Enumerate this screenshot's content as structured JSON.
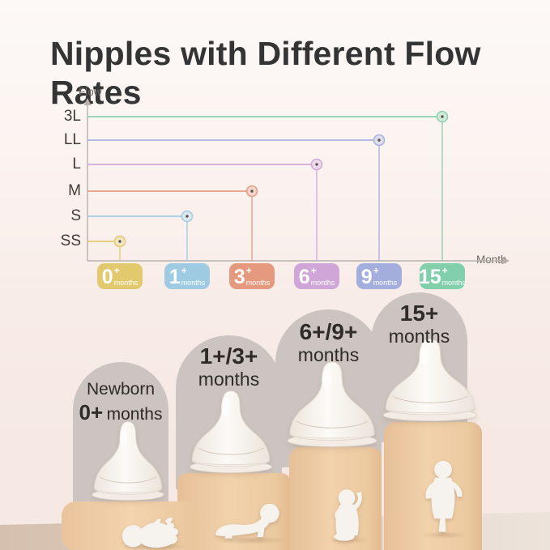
{
  "title": "Nipples with Different Flow Rates",
  "chart_data": {
    "type": "scatter",
    "subtype": "stem-step",
    "title": "Nipples with Different Flow Rates",
    "xlabel": "Month",
    "ylabel": "Flow",
    "x_categories": [
      "0+ months",
      "1+ months",
      "3+ months",
      "6+ months",
      "9+ months",
      "15+ months"
    ],
    "y_categories": [
      "SS",
      "S",
      "M",
      "L",
      "LL",
      "3L"
    ],
    "points": [
      {
        "month": "0+ months",
        "flow": "SS",
        "color": "#e3cb72"
      },
      {
        "month": "1+ months",
        "flow": "S",
        "color": "#a4cce2"
      },
      {
        "month": "3+ months",
        "flow": "M",
        "color": "#e69d86"
      },
      {
        "month": "6+ months",
        "flow": "L",
        "color": "#d2abdb"
      },
      {
        "month": "9+ months",
        "flow": "LL",
        "color": "#a9b2e0"
      },
      {
        "month": "15+ months",
        "flow": "3L",
        "color": "#8ed1b0"
      },
      {
        "note": "each colored line runs from the Flow axis to its month marker, then drops to the Month axis"
      }
    ],
    "grid": false,
    "legend": "none"
  },
  "chart": {
    "flow_axis_label": "Flow",
    "month_axis_label": "Month",
    "flow_levels": [
      "SS",
      "S",
      "M",
      "L",
      "LL",
      "3L"
    ],
    "months": [
      {
        "num": "0",
        "plus": "+",
        "unit": "months",
        "badge": "#e2c96d"
      },
      {
        "num": "1",
        "plus": "+",
        "unit": "months",
        "badge": "#9ecbe2"
      },
      {
        "num": "3",
        "plus": "+",
        "unit": "months",
        "badge": "#e5997f"
      },
      {
        "num": "6",
        "plus": "+",
        "unit": "months",
        "badge": "#d0a6d9"
      },
      {
        "num": "9",
        "plus": "+",
        "unit": "months",
        "badge": "#a3aedd"
      },
      {
        "num": "15",
        "plus": "+",
        "unit": "months",
        "badge": "#82cfac"
      }
    ]
  },
  "stands": [
    {
      "name": "Newborn",
      "age": "0+",
      "unit": "months"
    },
    {
      "name": "",
      "age": "1+/3+",
      "unit": "months"
    },
    {
      "name": "",
      "age": "6+/9+",
      "unit": "months"
    },
    {
      "name": "",
      "age": "15+",
      "unit": "months"
    }
  ],
  "colors": {
    "background_top": "#fdf9f7",
    "background_bottom": "#f6e9e4",
    "floor_left": "#d5c0af",
    "floor_right": "#ece3db",
    "arch": "#ccc4c0",
    "pedestal": "#eeca9f",
    "title_text": "#343434",
    "axis": "#b7b0ac",
    "nipple": "#f8f5f0",
    "baby_silhouette": "#f6f2ed"
  }
}
